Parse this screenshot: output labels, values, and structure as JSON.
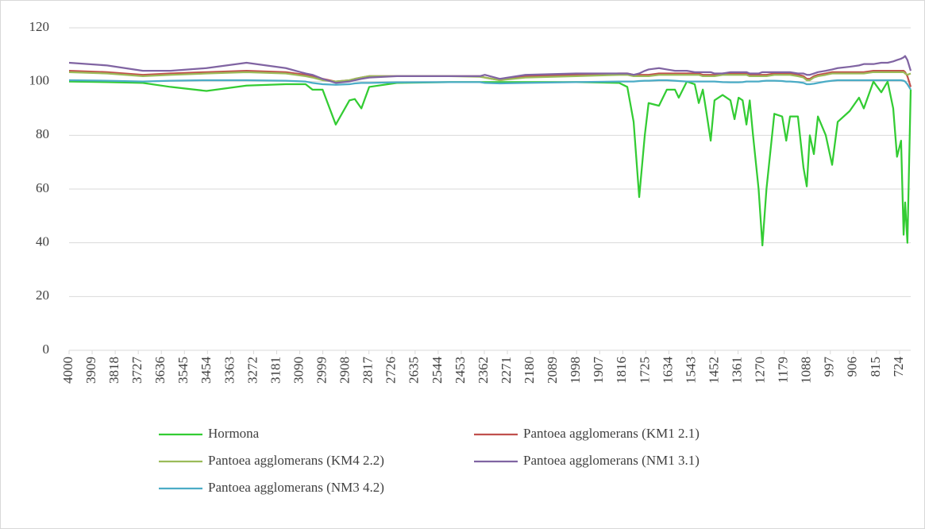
{
  "chart_data": {
    "type": "line",
    "x": [
      4000,
      3850,
      3709,
      3600,
      3458,
      3300,
      3145,
      3067,
      3040,
      3000,
      2948,
      2894,
      2873,
      2847,
      2816,
      2707,
      2500,
      2380,
      2360,
      2300,
      2200,
      2000,
      1830,
      1798,
      1773,
      1751,
      1729,
      1714,
      1673,
      1642,
      1610,
      1595,
      1563,
      1532,
      1516,
      1500,
      1485,
      1469,
      1454,
      1422,
      1391,
      1375,
      1359,
      1343,
      1328,
      1315,
      1302,
      1280,
      1265,
      1249,
      1218,
      1187,
      1171,
      1156,
      1125,
      1103,
      1090,
      1078,
      1062,
      1046,
      1015,
      990,
      968,
      921,
      884,
      865,
      827,
      796,
      771,
      749,
      734,
      718,
      708,
      702,
      693,
      680
    ],
    "series": [
      {
        "name": "Hormona",
        "color": "#33cc33",
        "values": [
          100,
          99.8,
          99.5,
          98,
          96.5,
          98.5,
          99,
          99,
          97,
          97,
          84,
          93,
          93.5,
          90,
          98,
          99.5,
          99.8,
          99.8,
          99.8,
          99.8,
          99.8,
          99.8,
          99.5,
          98,
          85,
          57,
          80,
          92,
          91,
          97,
          97,
          94,
          100,
          99,
          92,
          97,
          88,
          78,
          93,
          95,
          93,
          86,
          94,
          93,
          84,
          93,
          80,
          60,
          39,
          60,
          88,
          87,
          78,
          87,
          87,
          68,
          61,
          80,
          73,
          87,
          80,
          69,
          85,
          89,
          94,
          90,
          100,
          96,
          100,
          90,
          72,
          78,
          43,
          55,
          40,
          97
        ]
      },
      {
        "name": "Pantoea agglomerans (KM1 2.1)",
        "color": "#c0504d",
        "values": [
          104,
          103.5,
          102.5,
          103,
          103.5,
          104,
          103.5,
          102.5,
          102,
          101,
          100,
          100.5,
          101,
          101.5,
          102,
          102,
          102,
          102,
          101.5,
          100.5,
          102,
          102.5,
          103,
          103,
          102.5,
          102.5,
          102.5,
          102.5,
          103,
          103,
          103,
          103,
          103,
          103,
          103,
          102.5,
          102.5,
          102.5,
          102.5,
          103,
          103,
          103,
          103,
          103,
          103,
          102.5,
          102.5,
          102.5,
          102.5,
          102.5,
          103,
          103,
          103,
          103,
          102.5,
          102,
          101,
          101,
          102,
          102.5,
          103,
          103.5,
          103.5,
          103.5,
          103.5,
          103.5,
          104,
          104,
          104,
          104,
          104,
          104,
          104,
          103.5,
          102,
          98
        ]
      },
      {
        "name": "Pantoea agglomerans (KM4 2.2)",
        "color": "#9bbb59",
        "values": [
          103.5,
          103,
          102,
          102.5,
          103,
          103.5,
          103,
          102,
          101.5,
          100.5,
          100,
          100.5,
          101,
          101.5,
          102,
          102,
          102,
          101.8,
          101.5,
          100.5,
          101.5,
          102,
          102.5,
          102.5,
          102,
          102,
          102,
          102,
          102.5,
          102.5,
          102.5,
          102.5,
          102.5,
          102.5,
          102.5,
          102,
          102,
          102,
          102,
          102.5,
          102.5,
          102.5,
          102.5,
          102.5,
          102.5,
          102,
          102,
          102,
          102,
          102,
          102.5,
          102.5,
          102.5,
          102.5,
          102,
          101.5,
          100.5,
          100.5,
          101.5,
          102,
          102.5,
          103,
          103,
          103,
          103,
          103,
          103.5,
          103.5,
          103.5,
          103.5,
          103.5,
          103.5,
          103.5,
          103,
          102.5,
          103
        ]
      },
      {
        "name": "Pantoea agglomerans (NM1 3.1)",
        "color": "#8064a2",
        "values": [
          107,
          106,
          104,
          104,
          105,
          107,
          105,
          103,
          102.5,
          101,
          99.5,
          100,
          100.5,
          101,
          101.5,
          102,
          102,
          102,
          102.5,
          101,
          102.5,
          103,
          103,
          103,
          102.5,
          103,
          104,
          104.5,
          105,
          104.5,
          104,
          104,
          104,
          103.5,
          103.5,
          103.5,
          103.5,
          103.5,
          103,
          103,
          103.5,
          103.5,
          103.5,
          103.5,
          103.5,
          103,
          103,
          103,
          103.5,
          103.5,
          103.5,
          103.5,
          103.5,
          103.5,
          103,
          103,
          102.5,
          102.5,
          103,
          103.5,
          104,
          104.5,
          105,
          105.5,
          106,
          106.5,
          106.5,
          107,
          107,
          107.5,
          108,
          108.5,
          109,
          109.5,
          108,
          104
        ]
      },
      {
        "name": "Pantoea agglomerans (NM3 4.2)",
        "color": "#4bacc6",
        "values": [
          100.5,
          100.3,
          100,
          100.3,
          100.5,
          100.5,
          100.3,
          100,
          99.5,
          99,
          98.8,
          99,
          99.3,
          99.5,
          99.5,
          99.7,
          99.8,
          99.8,
          99.5,
          99.3,
          99.5,
          99.8,
          100,
          100,
          100,
          100.2,
          100.3,
          100.3,
          100.5,
          100.5,
          100.3,
          100.2,
          100,
          100,
          100,
          100,
          100,
          100,
          100,
          99.8,
          99.7,
          99.7,
          99.7,
          99.8,
          100,
          100,
          100,
          100,
          100.2,
          100.3,
          100.3,
          100.2,
          100,
          100,
          99.8,
          99.5,
          99,
          99,
          99.2,
          99.5,
          100,
          100.3,
          100.5,
          100.5,
          100.5,
          100.5,
          100.5,
          100.5,
          100.5,
          100.5,
          100.5,
          100.5,
          100.3,
          100,
          99,
          97
        ]
      }
    ],
    "xlim": [
      4000,
      680
    ],
    "xticks": [
      4000,
      3909,
      3818,
      3727,
      3636,
      3545,
      3454,
      3363,
      3272,
      3181,
      3090,
      2999,
      2908,
      2817,
      2726,
      2635,
      2544,
      2453,
      2362,
      2271,
      2180,
      2089,
      1998,
      1907,
      1816,
      1725,
      1634,
      1543,
      1452,
      1361,
      1270,
      1179,
      1088,
      997,
      906,
      815,
      724
    ],
    "ylim": [
      0,
      120
    ],
    "yticks": [
      0,
      20,
      40,
      60,
      80,
      100,
      120
    ],
    "grid": true,
    "legend": "bottom"
  }
}
